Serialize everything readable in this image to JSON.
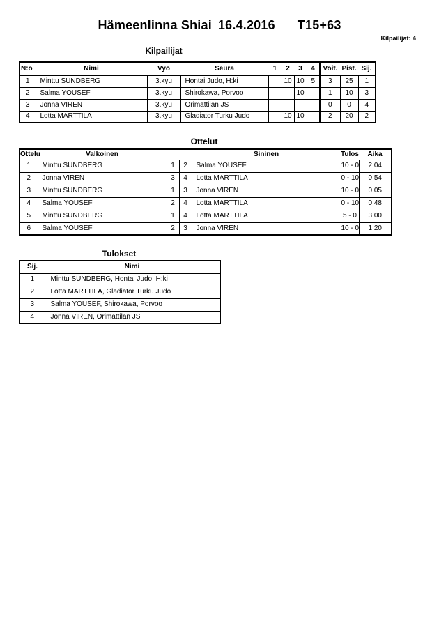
{
  "colors": {
    "text": "#000000",
    "background": "#ffffff",
    "border": "#000000"
  },
  "page": {
    "title_event": "Hämeenlinna Shiai",
    "title_date": "16.4.2016",
    "title_category": "T15+63",
    "competitor_count_label": "Kilpailijat: 4"
  },
  "kilpailijat": {
    "heading": "Kilpailijat",
    "headers": [
      "N:o",
      "Nimi",
      "Vyö",
      "Seura",
      "1",
      "2",
      "3",
      "4",
      "Voit.",
      "Pist.",
      "Sij."
    ],
    "rows": [
      [
        "1",
        "Minttu SUNDBERG",
        "3.kyu",
        "Hontai Judo, H:ki",
        "",
        "10",
        "10",
        "5",
        "3",
        "25",
        "1"
      ],
      [
        "2",
        "Salma YOUSEF",
        "3.kyu",
        "Shirokawa, Porvoo",
        "",
        "",
        "10",
        "",
        "1",
        "10",
        "3"
      ],
      [
        "3",
        "Jonna VIREN",
        "3.kyu",
        "Orimattilan JS",
        "",
        "",
        "",
        "",
        "0",
        "0",
        "4"
      ],
      [
        "4",
        "Lotta MARTTILA",
        "3.kyu",
        "Gladiator Turku Judo",
        "",
        "10",
        "10",
        "",
        "2",
        "20",
        "2"
      ]
    ]
  },
  "ottelut": {
    "heading": "Ottelut",
    "headers": [
      "Ottelu",
      "Valkoinen",
      "",
      "",
      "Sininen",
      "Tulos",
      "Aika"
    ],
    "rows": [
      [
        "1",
        "Minttu SUNDBERG",
        "1",
        "2",
        "Salma YOUSEF",
        "10 - 0",
        "2:04"
      ],
      [
        "2",
        "Jonna VIREN",
        "3",
        "4",
        "Lotta MARTTILA",
        "0 - 10",
        "0:54"
      ],
      [
        "3",
        "Minttu SUNDBERG",
        "1",
        "3",
        "Jonna VIREN",
        "10 - 0",
        "0:05"
      ],
      [
        "4",
        "Salma YOUSEF",
        "2",
        "4",
        "Lotta MARTTILA",
        "0 - 10",
        "0:48"
      ],
      [
        "5",
        "Minttu SUNDBERG",
        "1",
        "4",
        "Lotta MARTTILA",
        "5 - 0",
        "3:00"
      ],
      [
        "6",
        "Salma YOUSEF",
        "2",
        "3",
        "Jonna VIREN",
        "10 - 0",
        "1:20"
      ]
    ]
  },
  "tulokset": {
    "heading": "Tulokset",
    "headers": [
      "Sij.",
      "Nimi"
    ],
    "rows": [
      [
        "1",
        "Minttu SUNDBERG, Hontai Judo, H:ki"
      ],
      [
        "2",
        "Lotta MARTTILA, Gladiator Turku Judo"
      ],
      [
        "3",
        "Salma YOUSEF, Shirokawa, Porvoo"
      ],
      [
        "4",
        "Jonna VIREN, Orimattilan JS"
      ]
    ]
  }
}
